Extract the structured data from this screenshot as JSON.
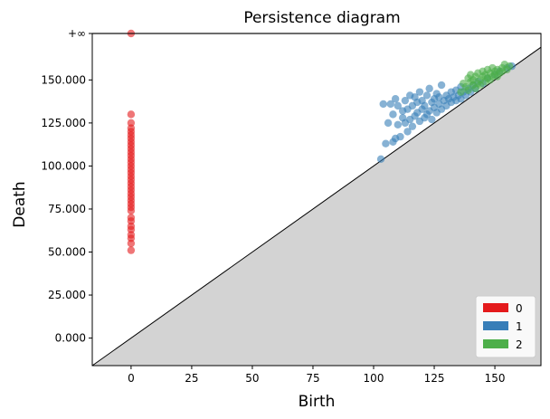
{
  "chart_data": {
    "type": "scatter",
    "title": "Persistence diagram",
    "xlabel": "Birth",
    "ylabel": "Death",
    "xlim": [
      -16,
      169
    ],
    "ylim": [
      -16,
      177
    ],
    "infinity_value": 177,
    "infinity_label": "+∞",
    "xticks": [
      {
        "value": 0,
        "label": "0"
      },
      {
        "value": 25,
        "label": "25"
      },
      {
        "value": 50,
        "label": "50"
      },
      {
        "value": 75,
        "label": "75"
      },
      {
        "value": 100,
        "label": "100"
      },
      {
        "value": 125,
        "label": "125"
      },
      {
        "value": 150,
        "label": "150"
      }
    ],
    "yticks": [
      {
        "value": 0,
        "label": "0.000"
      },
      {
        "value": 25,
        "label": "25.000"
      },
      {
        "value": 50,
        "label": "50.000"
      },
      {
        "value": 75,
        "label": "75.000"
      },
      {
        "value": 100,
        "label": "100.000"
      },
      {
        "value": 125,
        "label": "125.000"
      },
      {
        "value": 150,
        "label": "150.000"
      },
      {
        "value": 177,
        "label": "+∞"
      }
    ],
    "legend_position": "bottom-right",
    "series": [
      {
        "name": "0",
        "color": "#e41a1c",
        "points": [
          [
            0,
            177
          ],
          [
            0,
            130
          ],
          [
            0,
            125
          ],
          [
            0,
            122
          ],
          [
            0,
            120
          ],
          [
            0,
            118
          ],
          [
            0,
            116
          ],
          [
            0,
            114
          ],
          [
            0,
            112
          ],
          [
            0,
            110
          ],
          [
            0,
            108
          ],
          [
            0,
            106
          ],
          [
            0,
            104
          ],
          [
            0,
            102
          ],
          [
            0,
            100
          ],
          [
            0,
            98
          ],
          [
            0,
            96
          ],
          [
            0,
            94
          ],
          [
            0,
            92
          ],
          [
            0,
            90
          ],
          [
            0,
            88
          ],
          [
            0,
            86
          ],
          [
            0,
            84
          ],
          [
            0,
            82
          ],
          [
            0,
            80
          ],
          [
            0,
            78
          ],
          [
            0,
            76
          ],
          [
            0,
            74
          ],
          [
            0,
            70
          ],
          [
            0,
            68
          ],
          [
            0,
            65
          ],
          [
            0,
            63
          ],
          [
            0,
            60
          ],
          [
            0,
            58
          ],
          [
            0,
            55
          ],
          [
            0,
            51
          ]
        ]
      },
      {
        "name": "1",
        "color": "#377eb8",
        "points": [
          [
            103,
            104
          ],
          [
            104,
            136
          ],
          [
            105,
            113
          ],
          [
            106,
            125
          ],
          [
            107,
            136
          ],
          [
            108,
            130
          ],
          [
            108,
            114
          ],
          [
            109,
            116
          ],
          [
            109,
            139
          ],
          [
            110,
            124
          ],
          [
            110,
            135
          ],
          [
            111,
            117
          ],
          [
            112,
            128
          ],
          [
            112,
            132
          ],
          [
            113,
            125
          ],
          [
            113,
            138
          ],
          [
            114,
            120
          ],
          [
            114,
            133
          ],
          [
            115,
            141
          ],
          [
            115,
            127
          ],
          [
            116,
            135
          ],
          [
            116,
            123
          ],
          [
            117,
            140
          ],
          [
            117,
            129
          ],
          [
            118,
            131
          ],
          [
            118,
            137
          ],
          [
            119,
            126
          ],
          [
            119,
            143
          ],
          [
            120,
            133
          ],
          [
            120,
            138
          ],
          [
            121,
            128
          ],
          [
            121,
            135
          ],
          [
            122,
            141
          ],
          [
            122,
            130
          ],
          [
            123,
            132
          ],
          [
            123,
            145
          ],
          [
            124,
            127
          ],
          [
            124,
            137
          ],
          [
            125,
            134
          ],
          [
            125,
            139
          ],
          [
            126,
            131
          ],
          [
            126,
            142
          ],
          [
            127,
            136
          ],
          [
            127,
            140
          ],
          [
            128,
            133
          ],
          [
            128,
            147
          ],
          [
            129,
            138
          ],
          [
            130,
            135
          ],
          [
            130,
            141
          ],
          [
            131,
            139
          ],
          [
            132,
            137
          ],
          [
            132,
            143
          ],
          [
            133,
            140
          ],
          [
            134,
            138
          ],
          [
            134,
            144
          ],
          [
            135,
            141
          ],
          [
            136,
            139
          ],
          [
            136,
            146
          ],
          [
            137,
            143
          ],
          [
            138,
            141
          ],
          [
            139,
            145
          ],
          [
            140,
            143
          ],
          [
            141,
            147
          ],
          [
            142,
            145
          ],
          [
            143,
            149
          ],
          [
            145,
            148
          ],
          [
            147,
            151
          ],
          [
            150,
            153
          ],
          [
            152,
            155
          ],
          [
            155,
            157
          ],
          [
            157,
            158
          ]
        ]
      },
      {
        "name": "2",
        "color": "#4daf4a",
        "points": [
          [
            136,
            143
          ],
          [
            137,
            148
          ],
          [
            138,
            146
          ],
          [
            139,
            151
          ],
          [
            139,
            144
          ],
          [
            140,
            149
          ],
          [
            140,
            153
          ],
          [
            141,
            147
          ],
          [
            141,
            150
          ],
          [
            142,
            145
          ],
          [
            142,
            152
          ],
          [
            143,
            148
          ],
          [
            143,
            154
          ],
          [
            144,
            150
          ],
          [
            144,
            147
          ],
          [
            145,
            152
          ],
          [
            145,
            155
          ],
          [
            146,
            149
          ],
          [
            146,
            153
          ],
          [
            147,
            151
          ],
          [
            147,
            156
          ],
          [
            148,
            150
          ],
          [
            148,
            154
          ],
          [
            149,
            152
          ],
          [
            149,
            157
          ],
          [
            150,
            153
          ],
          [
            150,
            155
          ],
          [
            151,
            152
          ],
          [
            151,
            156
          ],
          [
            152,
            154
          ],
          [
            153,
            157
          ],
          [
            153,
            155
          ],
          [
            154,
            159
          ],
          [
            155,
            156
          ],
          [
            156,
            158
          ]
        ]
      }
    ]
  }
}
